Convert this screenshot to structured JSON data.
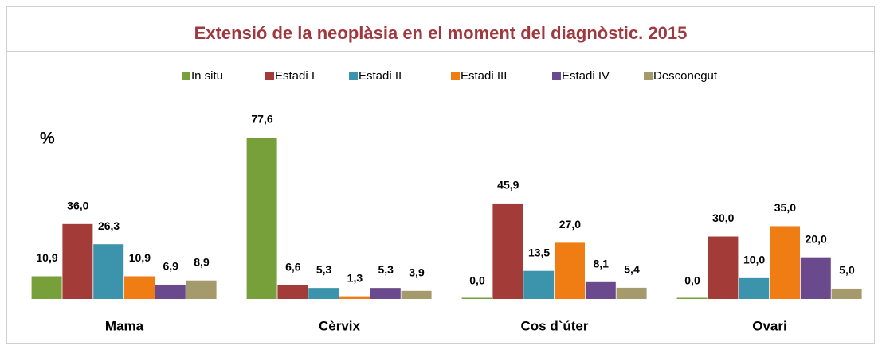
{
  "chart_data": {
    "type": "bar",
    "title": "Extensió de la neoplàsia en el moment del diagnòstic. 2015",
    "y_label": "%",
    "categories": [
      "Mama",
      "Cèrvix",
      "Cos d`úter",
      "Ovari"
    ],
    "series": [
      {
        "name": "In situ",
        "color": "#77a03a",
        "values": [
          10.9,
          77.6,
          0.0,
          0.0
        ],
        "value_labels": [
          "10,9",
          "77,6",
          "0,0",
          "0,0"
        ]
      },
      {
        "name": "Estadi I",
        "color": "#a33b39",
        "values": [
          36.0,
          6.6,
          45.9,
          30.0
        ],
        "value_labels": [
          "36,0",
          "6,6",
          "45,9",
          "30,0"
        ]
      },
      {
        "name": "Estadi II",
        "color": "#3b94ab",
        "values": [
          26.3,
          5.3,
          13.5,
          10.0
        ],
        "value_labels": [
          "26,3",
          "5,3",
          "13,5",
          "10,0"
        ]
      },
      {
        "name": "Estadi III",
        "color": "#f07c14",
        "values": [
          10.9,
          1.3,
          27.0,
          35.0
        ],
        "value_labels": [
          "10,9",
          "1,3",
          "27,0",
          "35,0"
        ]
      },
      {
        "name": "Estadi IV",
        "color": "#6a4a8c",
        "values": [
          6.9,
          5.3,
          8.1,
          20.0
        ],
        "value_labels": [
          "6,9",
          "5,3",
          "8,1",
          "20,0"
        ]
      },
      {
        "name": "Desconegut",
        "color": "#a59a6b",
        "values": [
          8.9,
          3.9,
          5.4,
          5.0
        ],
        "value_labels": [
          "8,9",
          "3,9",
          "5,4",
          "5,0"
        ]
      }
    ]
  }
}
